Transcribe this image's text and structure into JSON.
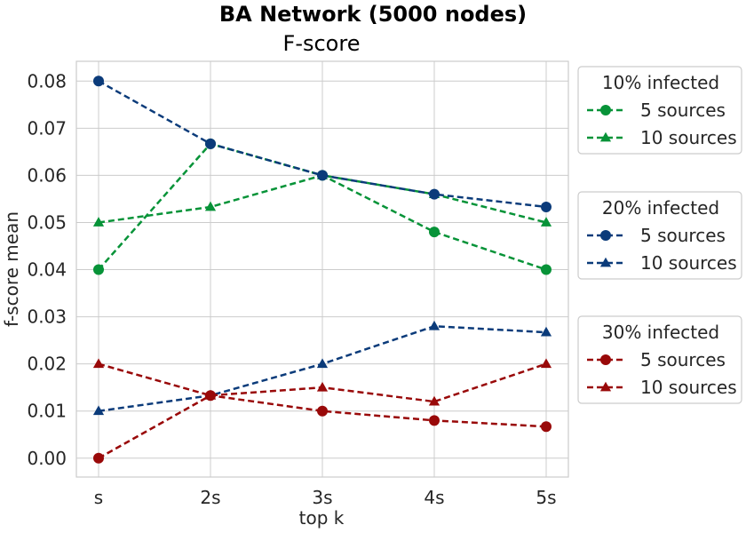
{
  "chart_data": {
    "type": "line",
    "suptitle": "BA Network (5000 nodes)",
    "title": "F-score",
    "xlabel": "top k",
    "ylabel": "f-score mean",
    "categories": [
      "s",
      "2s",
      "3s",
      "4s",
      "5s"
    ],
    "ylim": [
      -0.004,
      0.0842
    ],
    "yticks": [
      0.0,
      0.01,
      0.02,
      0.03,
      0.04,
      0.05,
      0.06,
      0.07,
      0.08
    ],
    "ytick_labels": [
      "0.00",
      "0.01",
      "0.02",
      "0.03",
      "0.04",
      "0.05",
      "0.06",
      "0.07",
      "0.08"
    ],
    "grid": true,
    "legend_placement": "outside-right",
    "legends": [
      {
        "title": "10% infected",
        "series": [
          {
            "name": "5 sources",
            "marker": "circle",
            "color": "#079338",
            "values": [
              0.04,
              0.0667,
              0.06,
              0.048,
              0.04
            ]
          },
          {
            "name": "10 sources",
            "marker": "triangle",
            "color": "#079338",
            "values": [
              0.05,
              0.0533,
              0.06,
              0.056,
              0.05
            ]
          }
        ]
      },
      {
        "title": "20% infected",
        "series": [
          {
            "name": "5 sources",
            "marker": "circle",
            "color": "#0b3b7a",
            "values": [
              0.08,
              0.0667,
              0.06,
              0.056,
              0.0533
            ]
          },
          {
            "name": "10 sources",
            "marker": "triangle",
            "color": "#0b3b7a",
            "values": [
              0.01,
              0.0133,
              0.02,
              0.028,
              0.0267
            ]
          }
        ]
      },
      {
        "title": "30% infected",
        "series": [
          {
            "name": "5 sources",
            "marker": "circle",
            "color": "#990909",
            "values": [
              0.0,
              0.0133,
              0.01,
              0.008,
              0.0067
            ]
          },
          {
            "name": "10 sources",
            "marker": "triangle",
            "color": "#990909",
            "values": [
              0.02,
              0.0133,
              0.015,
              0.012,
              0.02
            ]
          }
        ]
      }
    ]
  }
}
